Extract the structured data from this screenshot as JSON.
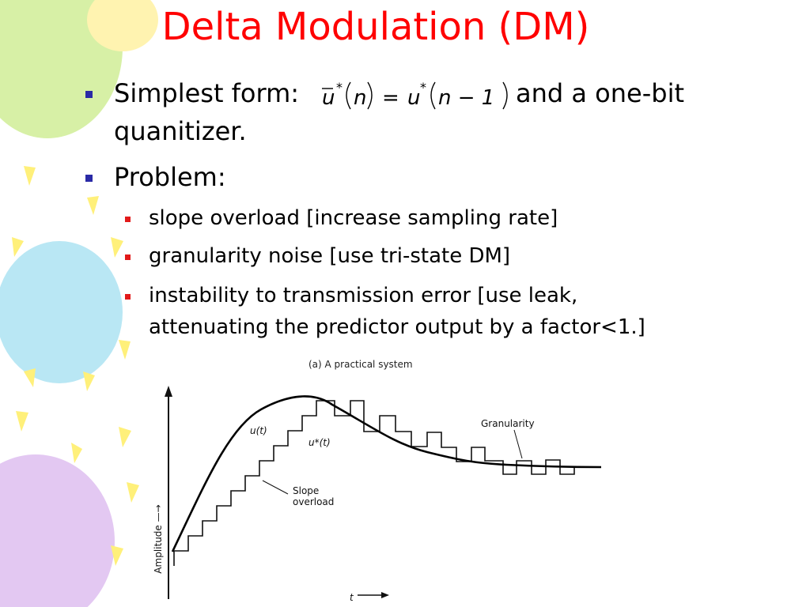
{
  "slide": {
    "title": "Delta Modulation (DM)",
    "bullets": {
      "b1_prefix": "Simplest form:",
      "b1_suffix": "and a one-bit",
      "b1_line2": "quanitizer.",
      "b2": "Problem:",
      "sub1": "slope overload  [increase sampling rate]",
      "sub2": "granularity noise  [use tri-state DM]",
      "sub3_line1": "instability to transmission error [use leak,",
      "sub3_line2": "attenuating the predictor output by a factor<1.]"
    },
    "equation": {
      "u_bar": "u",
      "star": "*",
      "n": "n",
      "equals": "=",
      "u": "u",
      "n_minus_1": "n − 1"
    },
    "figure": {
      "caption": "(a)  A practical system",
      "label_u": "u(t)",
      "label_ustar": "u*(t)",
      "slope_line1": "Slope",
      "slope_line2": "overload",
      "granularity": "Granularity",
      "y_axis": "Amplitude —→",
      "x_axis": "t"
    }
  },
  "colors": {
    "title": "#ff0000",
    "bullet_level1": "#2a2aa6",
    "bullet_level2": "#e21a1a"
  }
}
